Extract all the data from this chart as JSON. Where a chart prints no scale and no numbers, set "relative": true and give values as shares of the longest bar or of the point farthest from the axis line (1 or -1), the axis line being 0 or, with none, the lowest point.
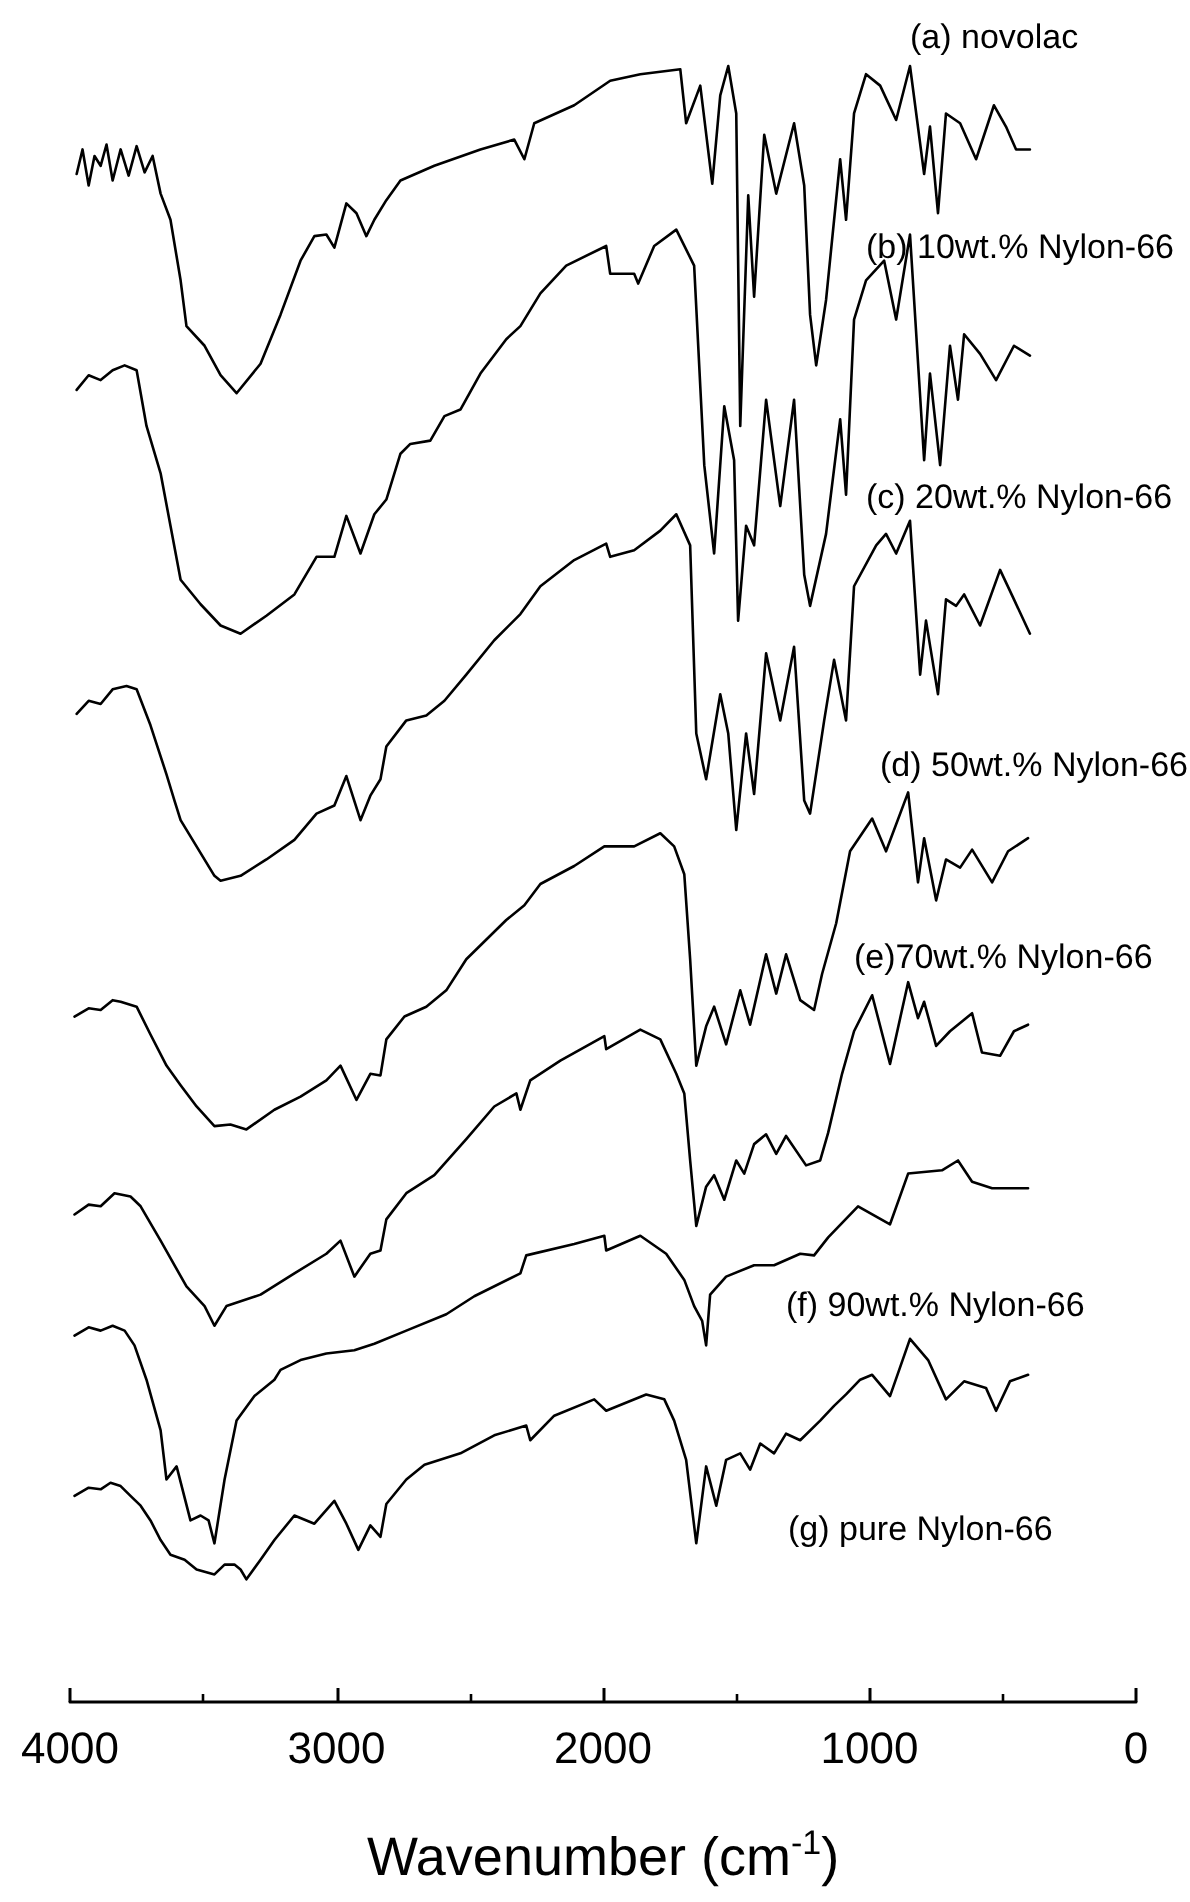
{
  "chart_data": {
    "type": "line",
    "relative": true,
    "xlabel": "Wavenumber (cm$^{-1}$)",
    "xlim": [
      4000,
      0
    ],
    "xticks": [
      4000,
      {
        "value": 3500,
        "label": null
      },
      3000,
      {
        "value": 2500,
        "label": null
      },
      2000,
      {
        "value": 1500,
        "label": null
      },
      1000,
      {
        "value": 500,
        "label": null
      },
      0
    ],
    "tick_labels": "x",
    "grid": false,
    "legend": false,
    "marker": "none",
    "line_style": "solid",
    "series": [
      {
        "name": "(a) novolac",
        "color": "#000000",
        "x": [
          3975,
          3953,
          3930,
          3908,
          3885,
          3863,
          3840,
          3810,
          3780,
          3750,
          3720,
          3690,
          3660,
          3623,
          3585,
          3563,
          3495,
          3435,
          3375,
          3285,
          3210,
          3135,
          3083,
          3038,
          3008,
          2963,
          2925,
          2888,
          2858,
          2813,
          2760,
          2633,
          2460,
          2333,
          2295,
          2258,
          2108,
          1973,
          1860,
          1710,
          1688,
          1635,
          1590,
          1560,
          1530,
          1500,
          1485,
          1455,
          1433,
          1395,
          1350,
          1283,
          1245,
          1223,
          1200,
          1163,
          1110,
          1088,
          1058,
          1013,
          960,
          900,
          848,
          795,
          773,
          743,
          713,
          660,
          600,
          533,
          488,
          450,
          398
        ],
        "values": [
          0.934,
          0.949,
          0.927,
          0.945,
          0.939,
          0.952,
          0.93,
          0.949,
          0.933,
          0.951,
          0.935,
          0.945,
          0.922,
          0.906,
          0.869,
          0.841,
          0.829,
          0.811,
          0.8,
          0.818,
          0.848,
          0.881,
          0.896,
          0.897,
          0.889,
          0.916,
          0.91,
          0.896,
          0.906,
          0.918,
          0.93,
          0.939,
          0.949,
          0.955,
          0.943,
          0.965,
          0.976,
          0.991,
          0.995,
          0.998,
          0.965,
          0.988,
          0.928,
          0.982,
          1,
          0.971,
          0.78,
          0.921,
          0.859,
          0.958,
          0.922,
          0.965,
          0.927,
          0.848,
          0.817,
          0.857,
          0.943,
          0.906,
          0.971,
          0.995,
          0.988,
          0.967,
          1,
          0.934,
          0.963,
          0.91,
          0.971,
          0.965,
          0.943,
          0.976,
          0.963,
          0.949,
          0.949
        ]
      },
      {
        "name": "(b) 10wt.% Nylon-66",
        "color": "#000000",
        "x": [
          3975,
          3930,
          3885,
          3840,
          3795,
          3750,
          3713,
          3660,
          3623,
          3585,
          3510,
          3435,
          3360,
          3263,
          3158,
          3075,
          3008,
          2963,
          2910,
          2858,
          2813,
          2760,
          2723,
          2648,
          2595,
          2535,
          2460,
          2363,
          2310,
          2235,
          2138,
          1988,
          1973,
          1883,
          1868,
          1808,
          1725,
          1658,
          1620,
          1583,
          1545,
          1508,
          1493,
          1463,
          1433,
          1388,
          1335,
          1283,
          1245,
          1223,
          1163,
          1110,
          1088,
          1058,
          1013,
          945,
          900,
          848,
          795,
          773,
          735,
          698,
          668,
          645,
          585,
          525,
          458,
          398
        ],
        "values": [
          0.802,
          0.811,
          0.808,
          0.814,
          0.817,
          0.814,
          0.78,
          0.751,
          0.719,
          0.686,
          0.671,
          0.658,
          0.653,
          0.664,
          0.677,
          0.7,
          0.7,
          0.725,
          0.702,
          0.726,
          0.735,
          0.763,
          0.769,
          0.771,
          0.786,
          0.79,
          0.812,
          0.833,
          0.841,
          0.861,
          0.878,
          0.89,
          0.873,
          0.873,
          0.867,
          0.89,
          0.9,
          0.878,
          0.756,
          0.702,
          0.792,
          0.759,
          0.661,
          0.719,
          0.707,
          0.796,
          0.731,
          0.796,
          0.689,
          0.67,
          0.714,
          0.784,
          0.738,
          0.845,
          0.869,
          0.881,
          0.845,
          0.897,
          0.759,
          0.812,
          0.756,
          0.829,
          0.796,
          0.836,
          0.824,
          0.808,
          0.829,
          0.823
        ]
      },
      {
        "name": "(c) 20wt.% Nylon-66",
        "color": "#000000",
        "x": [
          3975,
          3930,
          3885,
          3840,
          3788,
          3750,
          3698,
          3638,
          3608,
          3585,
          3458,
          3435,
          3360,
          3263,
          3158,
          3075,
          3008,
          2963,
          2910,
          2873,
          2835,
          2813,
          2738,
          2663,
          2595,
          2513,
          2408,
          2310,
          2235,
          2108,
          1988,
          1973,
          1883,
          1785,
          1725,
          1673,
          1650,
          1613,
          1560,
          1530,
          1500,
          1463,
          1433,
          1388,
          1335,
          1283,
          1245,
          1223,
          1170,
          1133,
          1088,
          1058,
          975,
          938,
          900,
          848,
          810,
          788,
          743,
          713,
          675,
          645,
          585,
          510,
          458,
          398
        ],
        "values": [
          0.604,
          0.612,
          0.61,
          0.619,
          0.621,
          0.619,
          0.597,
          0.567,
          0.551,
          0.539,
          0.505,
          0.502,
          0.505,
          0.515,
          0.527,
          0.543,
          0.548,
          0.566,
          0.539,
          0.554,
          0.564,
          0.584,
          0.6,
          0.603,
          0.612,
          0.628,
          0.649,
          0.665,
          0.682,
          0.698,
          0.708,
          0.7,
          0.704,
          0.716,
          0.726,
          0.707,
          0.592,
          0.564,
          0.616,
          0.592,
          0.533,
          0.592,
          0.555,
          0.641,
          0.6,
          0.645,
          0.551,
          0.543,
          0.6,
          0.637,
          0.6,
          0.682,
          0.707,
          0.714,
          0.702,
          0.722,
          0.628,
          0.661,
          0.616,
          0.674,
          0.67,
          0.677,
          0.658,
          0.692,
          0.674,
          0.653
        ]
      },
      {
        "name": "(d) 50wt.% Nylon-66",
        "color": "#000000",
        "x": [
          3983,
          3930,
          3885,
          3840,
          3810,
          3750,
          3698,
          3638,
          3585,
          3525,
          3458,
          3398,
          3338,
          3233,
          3135,
          3038,
          2985,
          2925,
          2873,
          2835,
          2813,
          2745,
          2663,
          2588,
          2513,
          2363,
          2295,
          2235,
          2108,
          1995,
          1883,
          1785,
          1733,
          1695,
          1673,
          1650,
          1613,
          1583,
          1538,
          1485,
          1448,
          1388,
          1350,
          1313,
          1260,
          1208,
          1178,
          1125,
          1073,
          990,
          938,
          855,
          818,
          795,
          750,
          713,
          660,
          615,
          540,
          480,
          405
        ],
        "values": [
          0.419,
          0.424,
          0.423,
          0.429,
          0.428,
          0.425,
          0.408,
          0.389,
          0.377,
          0.364,
          0.352,
          0.353,
          0.35,
          0.362,
          0.37,
          0.38,
          0.389,
          0.368,
          0.384,
          0.383,
          0.405,
          0.419,
          0.425,
          0.435,
          0.454,
          0.478,
          0.487,
          0.5,
          0.511,
          0.523,
          0.523,
          0.531,
          0.523,
          0.506,
          0.454,
          0.389,
          0.413,
          0.425,
          0.402,
          0.435,
          0.414,
          0.457,
          0.433,
          0.457,
          0.429,
          0.423,
          0.445,
          0.476,
          0.52,
          0.54,
          0.52,
          0.556,
          0.501,
          0.528,
          0.49,
          0.515,
          0.51,
          0.521,
          0.501,
          0.52,
          0.528
        ]
      },
      {
        "name": "(e)70wt.% Nylon-66",
        "color": "#000000",
        "x": [
          3983,
          3930,
          3885,
          3833,
          3773,
          3735,
          3660,
          3563,
          3495,
          3458,
          3413,
          3285,
          3158,
          3038,
          2985,
          2933,
          2873,
          2835,
          2813,
          2738,
          2633,
          2513,
          2408,
          2325,
          2310,
          2273,
          2160,
          1995,
          1988,
          1860,
          1785,
          1725,
          1695,
          1673,
          1650,
          1613,
          1583,
          1545,
          1500,
          1470,
          1433,
          1388,
          1350,
          1313,
          1238,
          1185,
          1155,
          1103,
          1058,
          990,
          923,
          855,
          818,
          795,
          750,
          698,
          615,
          578,
          510,
          458,
          405
        ],
        "values": [
          0.298,
          0.304,
          0.303,
          0.311,
          0.309,
          0.303,
          0.282,
          0.254,
          0.242,
          0.23,
          0.242,
          0.249,
          0.262,
          0.274,
          0.282,
          0.26,
          0.274,
          0.276,
          0.295,
          0.311,
          0.322,
          0.344,
          0.364,
          0.372,
          0.362,
          0.38,
          0.392,
          0.407,
          0.399,
          0.411,
          0.405,
          0.384,
          0.372,
          0.331,
          0.291,
          0.315,
          0.322,
          0.307,
          0.331,
          0.323,
          0.341,
          0.347,
          0.335,
          0.346,
          0.328,
          0.331,
          0.348,
          0.384,
          0.41,
          0.432,
          0.39,
          0.44,
          0.418,
          0.428,
          0.401,
          0.41,
          0.421,
          0.397,
          0.395,
          0.41,
          0.414
        ]
      },
      {
        "name": "(f) 90wt.% Nylon-66",
        "color": "#000000",
        "x": [
          3983,
          3930,
          3885,
          3840,
          3795,
          3758,
          3713,
          3660,
          3638,
          3600,
          3548,
          3510,
          3480,
          3458,
          3420,
          3375,
          3308,
          3233,
          3210,
          3135,
          3038,
          2933,
          2858,
          2738,
          2588,
          2483,
          2310,
          2288,
          2108,
          1995,
          1988,
          1860,
          1763,
          1695,
          1658,
          1628,
          1613,
          1598,
          1538,
          1433,
          1358,
          1260,
          1208,
          1155,
          1043,
          968,
          923,
          855,
          728,
          668,
          615,
          540,
          458,
          405
        ],
        "values": [
          0.224,
          0.229,
          0.227,
          0.23,
          0.227,
          0.218,
          0.197,
          0.166,
          0.136,
          0.144,
          0.111,
          0.114,
          0.111,
          0.097,
          0.136,
          0.172,
          0.187,
          0.197,
          0.203,
          0.209,
          0.213,
          0.215,
          0.219,
          0.227,
          0.237,
          0.248,
          0.262,
          0.273,
          0.28,
          0.285,
          0.276,
          0.285,
          0.274,
          0.258,
          0.242,
          0.233,
          0.218,
          0.249,
          0.26,
          0.267,
          0.267,
          0.274,
          0.273,
          0.284,
          0.303,
          0.296,
          0.292,
          0.323,
          0.325,
          0.331,
          0.318,
          0.314,
          0.314,
          0.314
        ]
      },
      {
        "name": "(g) pure Nylon-66",
        "color": "#000000",
        "x": [
          3983,
          3930,
          3885,
          3848,
          3810,
          3773,
          3735,
          3698,
          3660,
          3623,
          3570,
          3525,
          3458,
          3420,
          3383,
          3360,
          3338,
          3285,
          3233,
          3158,
          3083,
          3008,
          2963,
          2918,
          2873,
          2835,
          2813,
          2738,
          2670,
          2535,
          2408,
          2288,
          2273,
          2183,
          2033,
          1988,
          1838,
          1770,
          1733,
          1688,
          1650,
          1613,
          1575,
          1538,
          1485,
          1448,
          1410,
          1358,
          1313,
          1260,
          1185,
          1133,
          1088,
          1035,
          990,
          923,
          848,
          780,
          713,
          645,
          563,
          525,
          473,
          405
        ],
        "values": [
          0.126,
          0.131,
          0.13,
          0.134,
          0.132,
          0.126,
          0.12,
          0.111,
          0.099,
          0.09,
          0.087,
          0.081,
          0.078,
          0.084,
          0.084,
          0.081,
          0.075,
          0.087,
          0.099,
          0.114,
          0.109,
          0.123,
          0.109,
          0.093,
          0.108,
          0.101,
          0.121,
          0.136,
          0.145,
          0.152,
          0.163,
          0.169,
          0.16,
          0.175,
          0.185,
          0.178,
          0.188,
          0.185,
          0.172,
          0.148,
          0.097,
          0.144,
          0.12,
          0.148,
          0.152,
          0.142,
          0.158,
          0.152,
          0.164,
          0.16,
          0.172,
          0.181,
          0.188,
          0.197,
          0.2,
          0.187,
          0.222,
          0.209,
          0.185,
          0.196,
          0.192,
          0.178,
          0.196,
          0.2
        ]
      }
    ]
  }
}
